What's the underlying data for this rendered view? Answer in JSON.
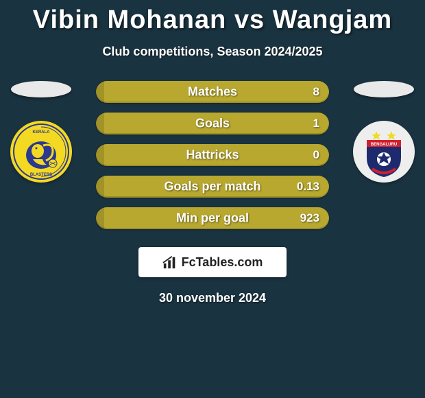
{
  "title": "Vibin Mohanan vs Wangjam",
  "subtitle": "Club competitions, Season 2024/2025",
  "date": "30 november 2024",
  "background_color": "#1a3340",
  "bar_color": "#b8a82f",
  "player_ellipse_color": "#e9e9e9",
  "ftables_label": "FcTables.com",
  "left_club": {
    "name": "Kerala Blasters",
    "bg": "#f4d923",
    "accent": "#2b3a8f"
  },
  "right_club": {
    "name": "Bengaluru",
    "bg": "#1e2a6e",
    "accent": "#d02030",
    "stars": "#f4d923"
  },
  "stats": [
    {
      "label": "Matches",
      "right_value": "8"
    },
    {
      "label": "Goals",
      "right_value": "1"
    },
    {
      "label": "Hattricks",
      "right_value": "0"
    },
    {
      "label": "Goals per match",
      "right_value": "0.13"
    },
    {
      "label": "Min per goal",
      "right_value": "923"
    }
  ]
}
